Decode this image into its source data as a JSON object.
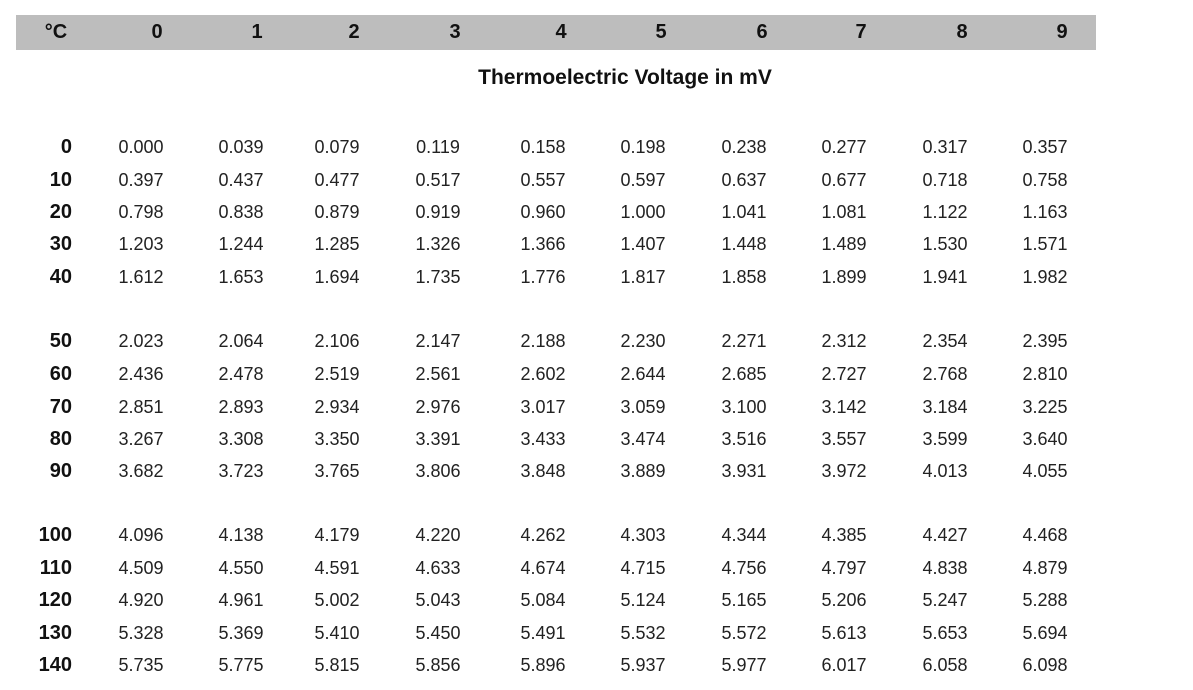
{
  "header": {
    "corner": "°C",
    "columns": [
      "0",
      "1",
      "2",
      "3",
      "4",
      "5",
      "6",
      "7",
      "8",
      "9"
    ]
  },
  "subtitle": "Thermoelectric Voltage in mV",
  "rows": [
    {
      "temp": "0",
      "values": [
        "0.000",
        "0.039",
        "0.079",
        "0.119",
        "0.158",
        "0.198",
        "0.238",
        "0.277",
        "0.317",
        "0.357"
      ]
    },
    {
      "temp": "10",
      "values": [
        "0.397",
        "0.437",
        "0.477",
        "0.517",
        "0.557",
        "0.597",
        "0.637",
        "0.677",
        "0.718",
        "0.758"
      ]
    },
    {
      "temp": "20",
      "values": [
        "0.798",
        "0.838",
        "0.879",
        "0.919",
        "0.960",
        "1.000",
        "1.041",
        "1.081",
        "1.122",
        "1.163"
      ]
    },
    {
      "temp": "30",
      "values": [
        "1.203",
        "1.244",
        "1.285",
        "1.326",
        "1.366",
        "1.407",
        "1.448",
        "1.489",
        "1.530",
        "1.571"
      ]
    },
    {
      "temp": "40",
      "values": [
        "1.612",
        "1.653",
        "1.694",
        "1.735",
        "1.776",
        "1.817",
        "1.858",
        "1.899",
        "1.941",
        "1.982"
      ]
    },
    {
      "temp": "50",
      "values": [
        "2.023",
        "2.064",
        "2.106",
        "2.147",
        "2.188",
        "2.230",
        "2.271",
        "2.312",
        "2.354",
        "2.395"
      ]
    },
    {
      "temp": "60",
      "values": [
        "2.436",
        "2.478",
        "2.519",
        "2.561",
        "2.602",
        "2.644",
        "2.685",
        "2.727",
        "2.768",
        "2.810"
      ]
    },
    {
      "temp": "70",
      "values": [
        "2.851",
        "2.893",
        "2.934",
        "2.976",
        "3.017",
        "3.059",
        "3.100",
        "3.142",
        "3.184",
        "3.225"
      ]
    },
    {
      "temp": "80",
      "values": [
        "3.267",
        "3.308",
        "3.350",
        "3.391",
        "3.433",
        "3.474",
        "3.516",
        "3.557",
        "3.599",
        "3.640"
      ]
    },
    {
      "temp": "90",
      "values": [
        "3.682",
        "3.723",
        "3.765",
        "3.806",
        "3.848",
        "3.889",
        "3.931",
        "3.972",
        "4.013",
        "4.055"
      ]
    },
    {
      "temp": "100",
      "values": [
        "4.096",
        "4.138",
        "4.179",
        "4.220",
        "4.262",
        "4.303",
        "4.344",
        "4.385",
        "4.427",
        "4.468"
      ]
    },
    {
      "temp": "110",
      "values": [
        "4.509",
        "4.550",
        "4.591",
        "4.633",
        "4.674",
        "4.715",
        "4.756",
        "4.797",
        "4.838",
        "4.879"
      ]
    },
    {
      "temp": "120",
      "values": [
        "4.920",
        "4.961",
        "5.002",
        "5.043",
        "5.084",
        "5.124",
        "5.165",
        "5.206",
        "5.247",
        "5.288"
      ]
    },
    {
      "temp": "130",
      "values": [
        "5.328",
        "5.369",
        "5.410",
        "5.450",
        "5.491",
        "5.532",
        "5.572",
        "5.613",
        "5.653",
        "5.694"
      ]
    },
    {
      "temp": "140",
      "values": [
        "5.735",
        "5.775",
        "5.815",
        "5.856",
        "5.896",
        "5.937",
        "5.977",
        "6.017",
        "6.058",
        "6.098"
      ]
    }
  ],
  "colors": {
    "header_background": "#bdbdbd",
    "text": "#111111"
  }
}
